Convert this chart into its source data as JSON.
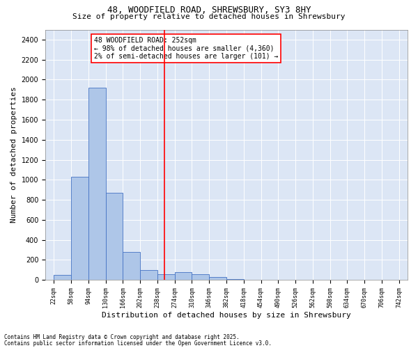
{
  "title_line1": "48, WOODFIELD ROAD, SHREWSBURY, SY3 8HY",
  "title_line2": "Size of property relative to detached houses in Shrewsbury",
  "xlabel": "Distribution of detached houses by size in Shrewsbury",
  "ylabel": "Number of detached properties",
  "footnote_line1": "Contains HM Land Registry data © Crown copyright and database right 2025.",
  "footnote_line2": "Contains public sector information licensed under the Open Government Licence v3.0.",
  "annotation_line1": "48 WOODFIELD ROAD: 252sqm",
  "annotation_line2": "← 98% of detached houses are smaller (4,360)",
  "annotation_line3": "2% of semi-detached houses are larger (101) →",
  "property_size": 252,
  "vline_x": 252,
  "bar_color": "#aec6e8",
  "bar_edge_color": "#4472c4",
  "vline_color": "red",
  "annotation_box_edge_color": "red",
  "background_color": "#dce6f5",
  "fig_background_color": "#ffffff",
  "ylim": [
    0,
    2500
  ],
  "yticks": [
    0,
    200,
    400,
    600,
    800,
    1000,
    1200,
    1400,
    1600,
    1800,
    2000,
    2200,
    2400
  ],
  "bin_edges": [
    22,
    58,
    94,
    130,
    166,
    202,
    238,
    274,
    310,
    346,
    382,
    418,
    454,
    490,
    526,
    562,
    598,
    634,
    670,
    706,
    742
  ],
  "bin_heights": [
    50,
    1030,
    1920,
    870,
    280,
    100,
    55,
    75,
    60,
    30,
    10,
    0,
    0,
    0,
    0,
    0,
    0,
    0,
    0,
    0
  ],
  "title_fontsize": 9,
  "subtitle_fontsize": 8,
  "xlabel_fontsize": 8,
  "ylabel_fontsize": 8,
  "xtick_fontsize": 6,
  "ytick_fontsize": 7,
  "annotation_fontsize": 7,
  "footnote_fontsize": 5.5
}
